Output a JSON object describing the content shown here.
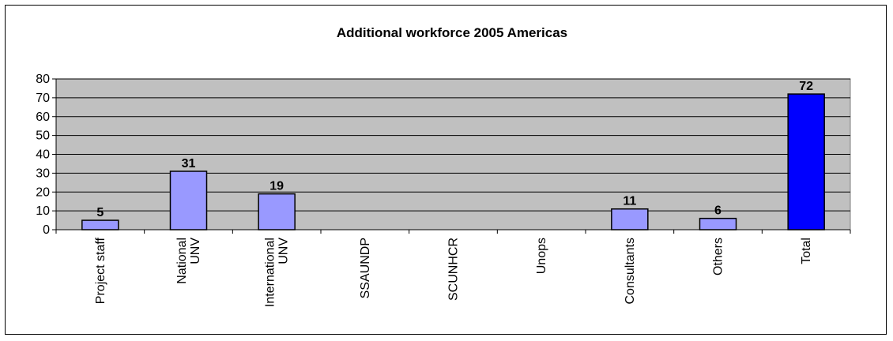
{
  "chart_data": {
    "type": "bar",
    "title": "Additional workforce 2005 Americas",
    "xlabel": "",
    "ylabel": "",
    "ylim": [
      0,
      80
    ],
    "yticks": [
      0,
      10,
      20,
      30,
      40,
      50,
      60,
      70,
      80
    ],
    "grid": true,
    "legend": "none",
    "categories": [
      [
        "Project staff"
      ],
      [
        "National",
        "UNV"
      ],
      [
        "International",
        "UNV"
      ],
      [
        "SSAUNDP"
      ],
      [
        "SCUNHCR"
      ],
      [
        "Unops"
      ],
      [
        "Consultants"
      ],
      [
        "Others"
      ],
      [
        "Total"
      ]
    ],
    "values": [
      5,
      31,
      19,
      null,
      null,
      null,
      11,
      6,
      72
    ],
    "colors": {
      "plot_background": "#c0c0c0",
      "bar": "#9999ff",
      "total_bar": "#0000ff",
      "grid": "#000000"
    }
  }
}
